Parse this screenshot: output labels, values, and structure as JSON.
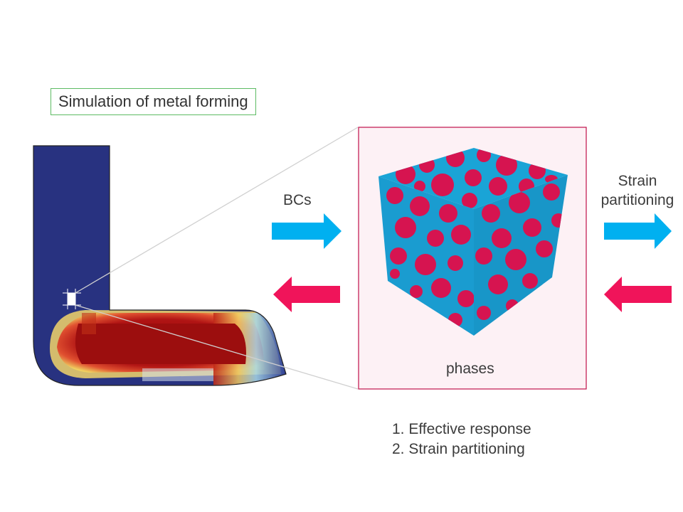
{
  "title": "Simulation of metal forming",
  "labels": {
    "bcs": "BCs",
    "strain_line1": "Strain",
    "strain_line2": "partitioning",
    "phases": "phases"
  },
  "outcomes": [
    "1. Effective response",
    "2. Strain partitioning"
  ],
  "colors": {
    "arrow_forward": "#00b0f0",
    "arrow_backward": "#f0145a",
    "phase_a": "#1aa4d6",
    "phase_b": "#d61450",
    "rve_frame": "#c0104a",
    "rve_background": "#fdf1f5",
    "title_border": "#5dbb63"
  },
  "icons": {
    "forward_arrow": "right-arrow-icon",
    "backward_arrow": "left-arrow-icon"
  }
}
